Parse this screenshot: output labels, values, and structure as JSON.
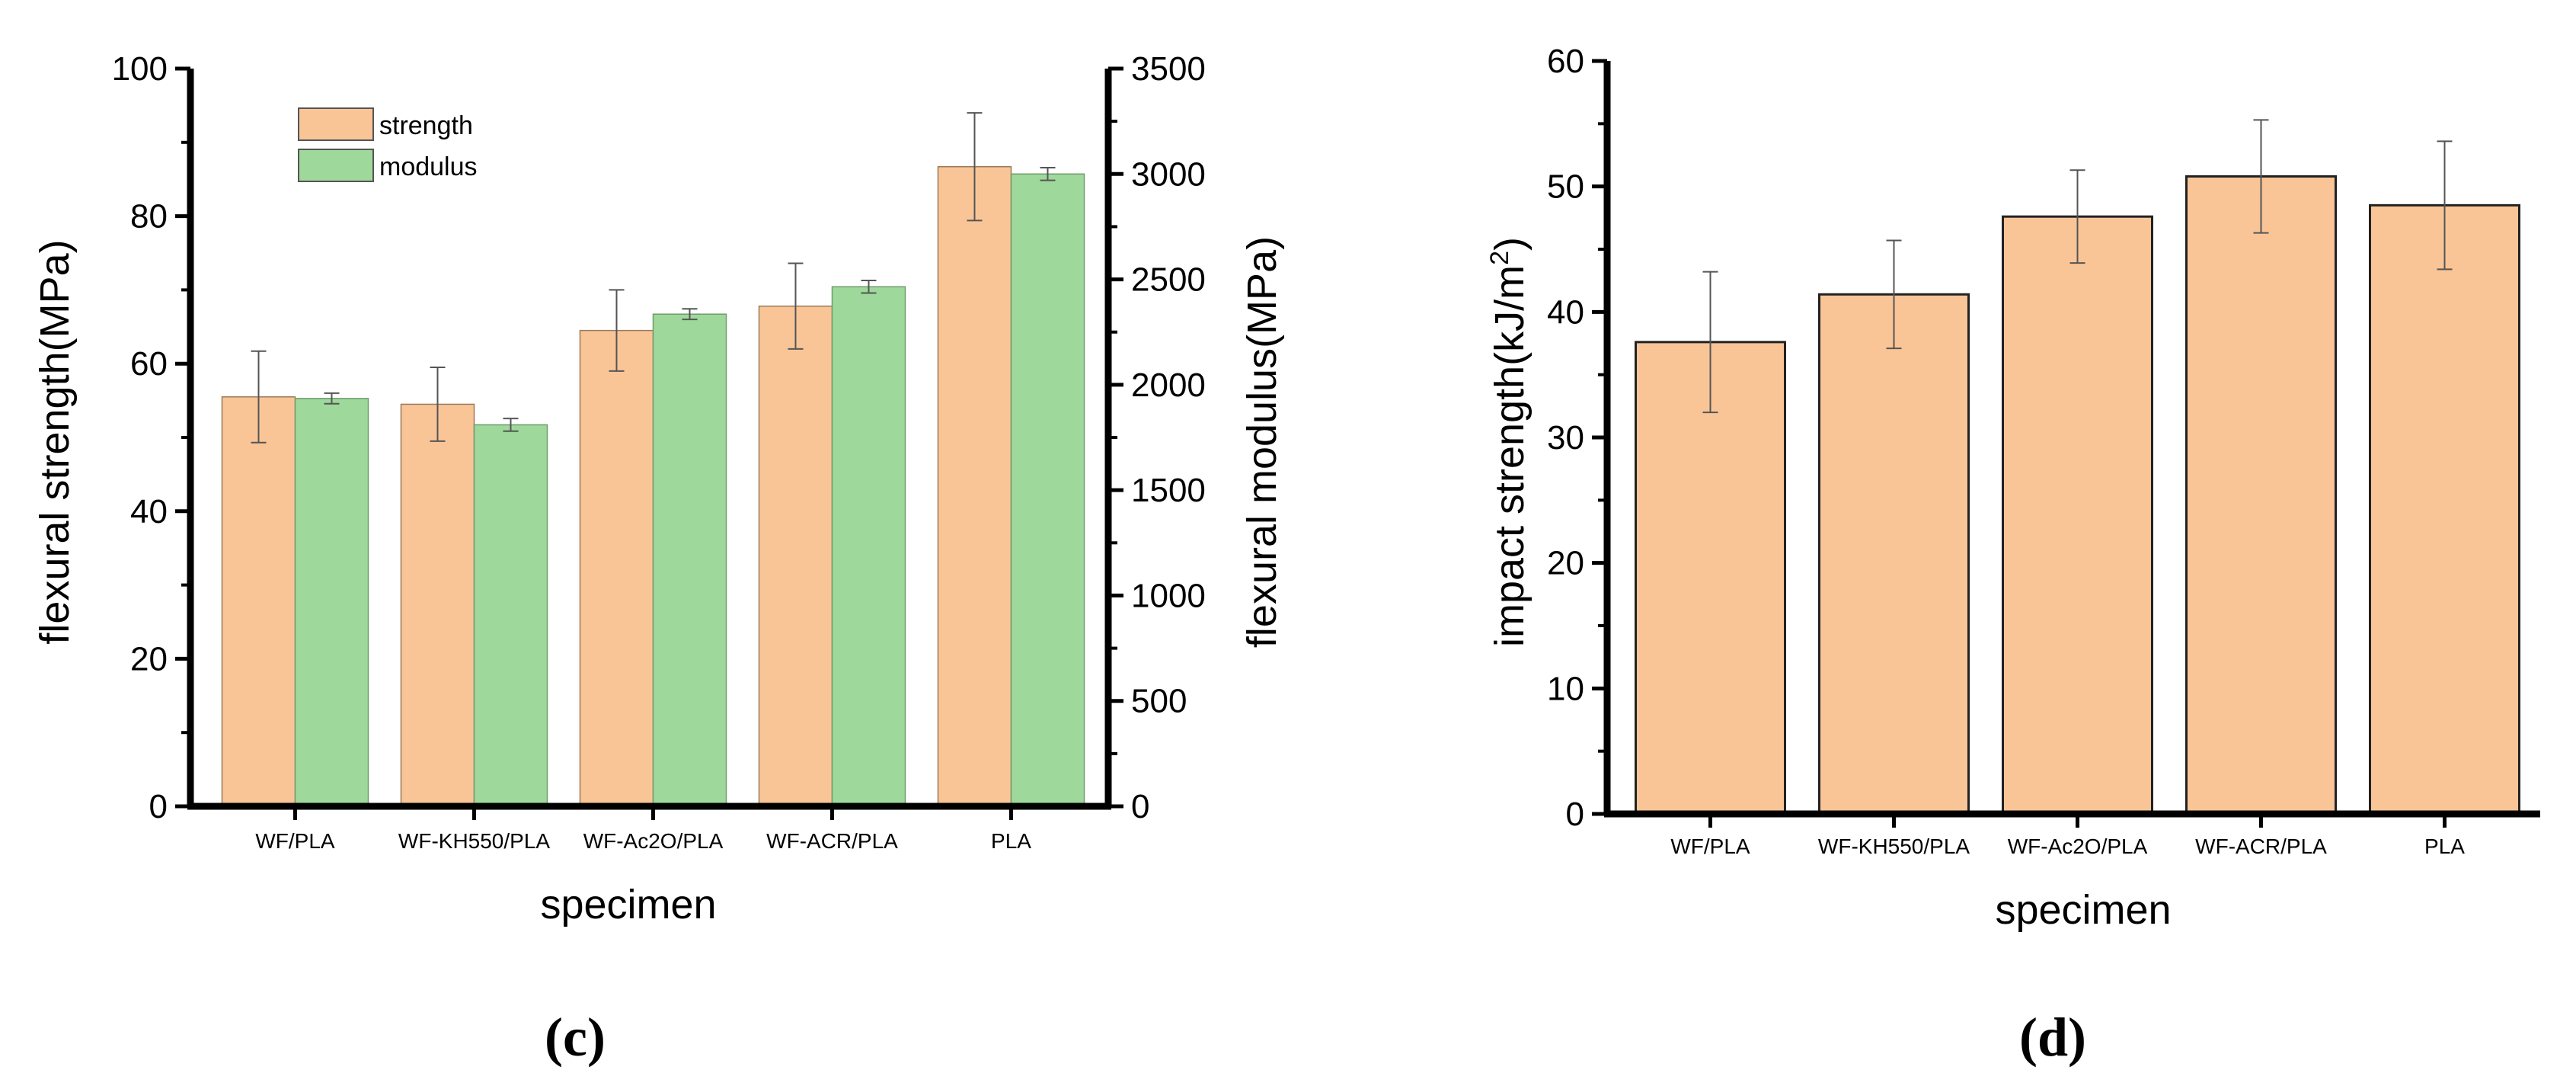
{
  "colors": {
    "strength": "#F9C597",
    "modulus": "#9FD89B",
    "impact": "#F9C597",
    "axis": "#000000",
    "errorbar": "#555555"
  },
  "chart_data": [
    {
      "id": "c",
      "panel_label": "(c)",
      "type": "bar",
      "categories": [
        "WF/PLA",
        "WF-KH550/PLA",
        "WF-Ac2O/PLA",
        "WF-ACR/PLA",
        "PLA"
      ],
      "xlabel": "specimen",
      "ylabel": "flexural strength(MPa)",
      "y2label": "flexural modulus(MPa)",
      "ylim": [
        0,
        100
      ],
      "y2lim": [
        0,
        3500
      ],
      "yticks": [
        0,
        20,
        40,
        60,
        80,
        100
      ],
      "y2ticks": [
        0,
        500,
        1000,
        1500,
        2000,
        2500,
        3000,
        3500
      ],
      "legend_position": "top-left",
      "series": [
        {
          "name": "strength",
          "axis": "left",
          "values": [
            55.5,
            54.5,
            64.5,
            67.8,
            86.7
          ],
          "errors": [
            6.2,
            5.0,
            5.5,
            5.8,
            7.3
          ]
        },
        {
          "name": "modulus",
          "axis": "right",
          "values": [
            1935,
            1810,
            2335,
            2465,
            3000
          ],
          "errors": [
            25,
            30,
            25,
            30,
            30
          ]
        }
      ]
    },
    {
      "id": "d",
      "panel_label": "(d)",
      "type": "bar",
      "categories": [
        "WF/PLA",
        "WF-KH550/PLA",
        "WF-Ac2O/PLA",
        "WF-ACR/PLA",
        "PLA"
      ],
      "xlabel": "specimen",
      "ylabel": "impact strength(kJ/m",
      "ylabel_sup": "2",
      "ylabel_end": ")",
      "ylim": [
        0,
        60
      ],
      "yticks": [
        0,
        10,
        20,
        30,
        40,
        50,
        60
      ],
      "series": [
        {
          "name": "impact strength",
          "values": [
            37.6,
            41.4,
            47.6,
            50.8,
            48.5
          ],
          "errors": [
            5.6,
            4.3,
            3.7,
            4.5,
            5.1
          ]
        }
      ]
    }
  ]
}
